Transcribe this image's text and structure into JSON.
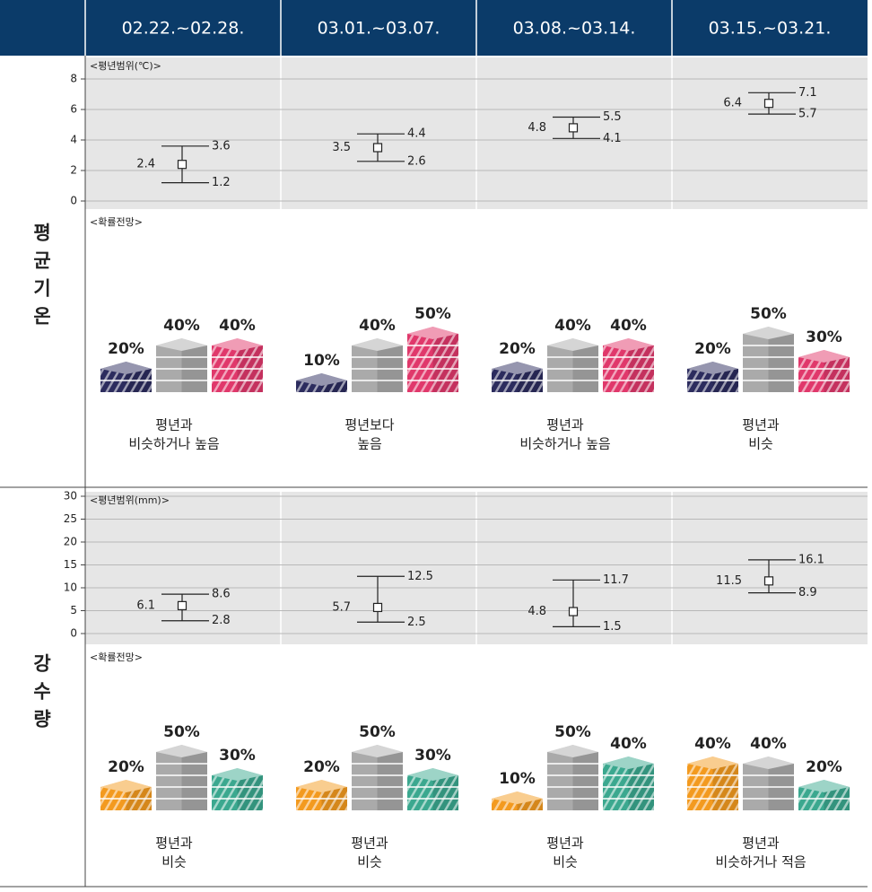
{
  "header": {
    "weeks": [
      "02.22.~02.28.",
      "03.01.~03.07.",
      "03.08.~03.14.",
      "03.15.~03.21."
    ]
  },
  "temperature": {
    "label": "평균기온",
    "range": {
      "type": "errorbar",
      "title": "<평년범위(℃)>",
      "ylim": [
        0,
        9
      ],
      "yticks": [
        0,
        2,
        4,
        6,
        8
      ],
      "means": [
        2.4,
        3.5,
        4.8,
        6.4
      ],
      "lows": [
        1.2,
        2.6,
        4.1,
        5.7
      ],
      "highs": [
        3.6,
        4.4,
        5.5,
        7.1
      ]
    },
    "outlook_title": "<확률전망>",
    "colors": [
      "#2c2c5e",
      "#aaaaaa",
      "#e0386b"
    ],
    "outlook": [
      {
        "values": [
          20,
          40,
          40
        ],
        "value_labels": [
          "20%",
          "40%",
          "40%"
        ],
        "text": [
          "평년과",
          "비슷하거나 높음"
        ]
      },
      {
        "values": [
          10,
          40,
          50
        ],
        "value_labels": [
          "10%",
          "40%",
          "50%"
        ],
        "text": [
          "평년보다",
          "높음"
        ]
      },
      {
        "values": [
          20,
          40,
          40
        ],
        "value_labels": [
          "20%",
          "40%",
          "40%"
        ],
        "text": [
          "평년과",
          "비슷하거나 높음"
        ]
      },
      {
        "values": [
          20,
          50,
          30
        ],
        "value_labels": [
          "20%",
          "50%",
          "30%"
        ],
        "text": [
          "평년과",
          "비슷"
        ]
      }
    ]
  },
  "precipitation": {
    "label": "강수량",
    "range": {
      "type": "errorbar",
      "title": "<평년범위(mm)>",
      "ylim": [
        0,
        30
      ],
      "yticks": [
        0,
        5,
        10,
        15,
        20,
        25,
        30
      ],
      "means": [
        6.1,
        5.7,
        4.8,
        11.5
      ],
      "lows": [
        2.8,
        2.5,
        1.5,
        8.9
      ],
      "highs": [
        8.6,
        12.5,
        11.7,
        16.1
      ]
    },
    "outlook_title": "<확률전망>",
    "colors": [
      "#f39a1f",
      "#aaaaaa",
      "#3ba88f"
    ],
    "outlook": [
      {
        "values": [
          20,
          50,
          30
        ],
        "value_labels": [
          "20%",
          "50%",
          "30%"
        ],
        "text": [
          "평년과",
          "비슷"
        ]
      },
      {
        "values": [
          20,
          50,
          30
        ],
        "value_labels": [
          "20%",
          "50%",
          "30%"
        ],
        "text": [
          "평년과",
          "비슷"
        ]
      },
      {
        "values": [
          10,
          50,
          40
        ],
        "value_labels": [
          "10%",
          "50%",
          "40%"
        ],
        "text": [
          "평년과",
          "비슷"
        ]
      },
      {
        "values": [
          40,
          40,
          20
        ],
        "value_labels": [
          "40%",
          "40%",
          "20%"
        ],
        "text": [
          "평년과",
          "비슷하거나 적음"
        ]
      }
    ]
  }
}
